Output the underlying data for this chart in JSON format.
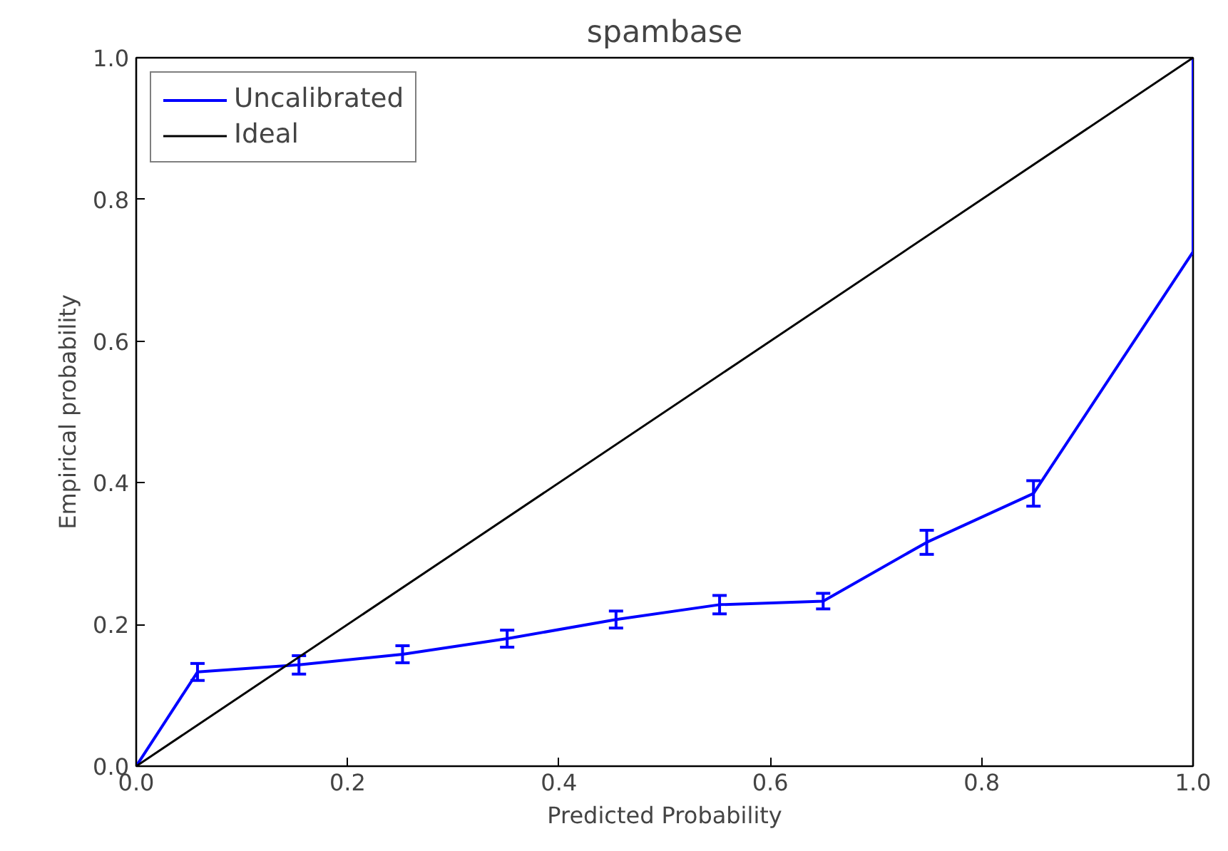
{
  "chart_data": {
    "type": "line",
    "title": "spambase",
    "xlabel": "Predicted Probability",
    "ylabel": "Empirical probability",
    "xlim": [
      0,
      1
    ],
    "ylim": [
      0,
      1
    ],
    "xticks": [
      {
        "value": 0,
        "label": "0.0"
      },
      0.2,
      0.4,
      0.6,
      0.8,
      {
        "value": 1,
        "label": "1.0"
      }
    ],
    "yticks": [
      {
        "value": 0,
        "label": "0.0"
      },
      0.2,
      0.4,
      0.6,
      0.8,
      {
        "value": 1,
        "label": "1.0"
      }
    ],
    "grid": false,
    "legend": "top left",
    "series": [
      {
        "name": "Uncalibrated",
        "color": "#0000ff",
        "x": [
          0,
          0.058,
          0.154,
          0.252,
          0.351,
          0.454,
          0.552,
          0.65,
          0.748,
          0.849,
          1.0,
          1.0
        ],
        "values": [
          0,
          0.133,
          0.143,
          0.158,
          0.18,
          0.207,
          0.228,
          0.233,
          0.316,
          0.385,
          0.726,
          1.0
        ],
        "errors": [
          null,
          0.012,
          0.013,
          0.012,
          0.012,
          0.012,
          0.013,
          0.011,
          0.017,
          0.018,
          null,
          null
        ]
      },
      {
        "name": "Ideal",
        "color": "#000000",
        "x": [
          0,
          1
        ],
        "values": [
          0,
          1
        ]
      }
    ]
  }
}
